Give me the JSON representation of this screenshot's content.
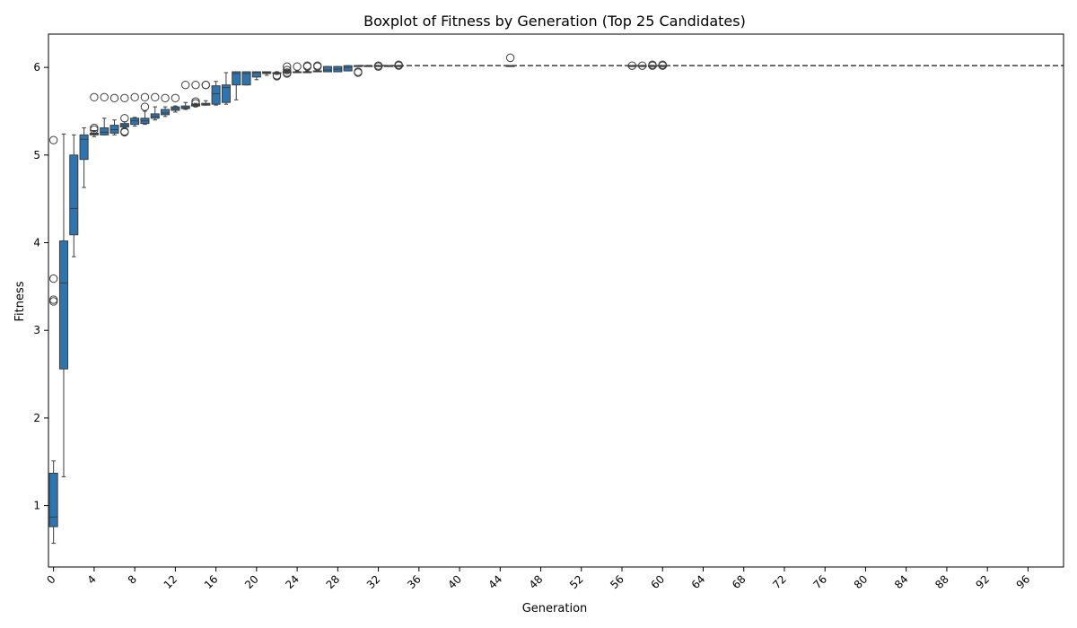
{
  "chart_data": {
    "type": "boxplot",
    "title": "Boxplot of Fitness by Generation (Top 25 Candidates)",
    "xlabel": "Generation",
    "ylabel": "Fitness",
    "xlim": [
      -0.5,
      99.5
    ],
    "ylim": [
      0.3,
      6.38
    ],
    "yticks": [
      1,
      2,
      3,
      4,
      5,
      6
    ],
    "xticks": [
      0,
      4,
      8,
      12,
      16,
      20,
      24,
      28,
      32,
      36,
      40,
      44,
      48,
      52,
      56,
      60,
      64,
      68,
      72,
      76,
      80,
      84,
      88,
      92,
      96
    ],
    "grid": false,
    "box_color": "#2e75b0",
    "edge_color": "#3d3d3d",
    "boxes": [
      {
        "gen": 0,
        "whislo": 0.57,
        "q1": 0.76,
        "med": 0.87,
        "q3": 1.37,
        "whishi": 1.51,
        "fliers": [
          5.17,
          3.59,
          3.35,
          3.33
        ]
      },
      {
        "gen": 1,
        "whislo": 1.33,
        "q1": 2.56,
        "med": 3.54,
        "q3": 4.02,
        "whishi": 5.24,
        "fliers": []
      },
      {
        "gen": 2,
        "whislo": 3.84,
        "q1": 4.09,
        "med": 4.39,
        "q3": 5.0,
        "whishi": 5.23,
        "fliers": []
      },
      {
        "gen": 3,
        "whislo": 4.63,
        "q1": 4.95,
        "med": 5.18,
        "q3": 5.23,
        "whishi": 5.31,
        "fliers": []
      },
      {
        "gen": 4,
        "whislo": 5.21,
        "q1": 5.23,
        "med": 5.24,
        "q3": 5.25,
        "whishi": 5.28,
        "fliers": [
          5.66,
          5.31,
          5.29
        ]
      },
      {
        "gen": 5,
        "whislo": 5.23,
        "q1": 5.23,
        "med": 5.26,
        "q3": 5.31,
        "whishi": 5.42,
        "fliers": [
          5.66
        ]
      },
      {
        "gen": 6,
        "whislo": 5.23,
        "q1": 5.25,
        "med": 5.29,
        "q3": 5.34,
        "whishi": 5.4,
        "fliers": [
          5.65
        ]
      },
      {
        "gen": 7,
        "whislo": 5.3,
        "q1": 5.32,
        "med": 5.34,
        "q3": 5.36,
        "whishi": 5.38,
        "fliers": [
          5.65,
          5.42,
          5.27,
          5.26
        ]
      },
      {
        "gen": 8,
        "whislo": 5.33,
        "q1": 5.35,
        "med": 5.39,
        "q3": 5.42,
        "whishi": 5.43,
        "fliers": [
          5.66
        ]
      },
      {
        "gen": 9,
        "whislo": 5.35,
        "q1": 5.36,
        "med": 5.39,
        "q3": 5.42,
        "whishi": 5.5,
        "fliers": [
          5.66,
          5.55
        ]
      },
      {
        "gen": 10,
        "whislo": 5.4,
        "q1": 5.42,
        "med": 5.44,
        "q3": 5.47,
        "whishi": 5.55,
        "fliers": [
          5.66
        ]
      },
      {
        "gen": 11,
        "whislo": 5.44,
        "q1": 5.46,
        "med": 5.48,
        "q3": 5.52,
        "whishi": 5.55,
        "fliers": [
          5.65
        ]
      },
      {
        "gen": 12,
        "whislo": 5.49,
        "q1": 5.51,
        "med": 5.53,
        "q3": 5.55,
        "whishi": 5.56,
        "fliers": [
          5.65
        ]
      },
      {
        "gen": 13,
        "whislo": 5.52,
        "q1": 5.53,
        "med": 5.54,
        "q3": 5.56,
        "whishi": 5.6,
        "fliers": [
          5.8
        ]
      },
      {
        "gen": 14,
        "whislo": 5.55,
        "q1": 5.56,
        "med": 5.57,
        "q3": 5.58,
        "whishi": 5.59,
        "fliers": [
          5.8,
          5.61,
          5.59
        ]
      },
      {
        "gen": 15,
        "whislo": 5.57,
        "q1": 5.57,
        "med": 5.58,
        "q3": 5.59,
        "whishi": 5.62,
        "fliers": [
          5.8,
          5.8
        ]
      },
      {
        "gen": 16,
        "whislo": 5.57,
        "q1": 5.58,
        "med": 5.7,
        "q3": 5.79,
        "whishi": 5.84,
        "fliers": []
      },
      {
        "gen": 17,
        "whislo": 5.58,
        "q1": 5.6,
        "med": 5.77,
        "q3": 5.8,
        "whishi": 5.94,
        "fliers": []
      },
      {
        "gen": 18,
        "whislo": 5.63,
        "q1": 5.8,
        "med": 5.93,
        "q3": 5.95,
        "whishi": 5.95,
        "fliers": []
      },
      {
        "gen": 19,
        "whislo": 5.8,
        "q1": 5.8,
        "med": 5.93,
        "q3": 5.95,
        "whishi": 5.95,
        "fliers": []
      },
      {
        "gen": 20,
        "whislo": 5.86,
        "q1": 5.89,
        "med": 5.94,
        "q3": 5.95,
        "whishi": 5.95,
        "fliers": []
      },
      {
        "gen": 21,
        "whislo": 5.91,
        "q1": 5.93,
        "med": 5.94,
        "q3": 5.95,
        "whishi": 5.95,
        "fliers": []
      },
      {
        "gen": 22,
        "whislo": 5.92,
        "q1": 5.93,
        "med": 5.94,
        "q3": 5.94,
        "whishi": 5.95,
        "fliers": [
          5.91,
          5.9
        ]
      },
      {
        "gen": 23,
        "whislo": 5.95,
        "q1": 5.95,
        "med": 5.95,
        "q3": 5.95,
        "whishi": 5.96,
        "fliers": [
          6.01,
          5.97,
          5.94,
          5.93
        ]
      },
      {
        "gen": 24,
        "whislo": 5.95,
        "q1": 5.95,
        "med": 5.95,
        "q3": 5.95,
        "whishi": 5.96,
        "fliers": [
          6.01
        ]
      },
      {
        "gen": 25,
        "whislo": 5.95,
        "q1": 5.95,
        "med": 5.95,
        "q3": 5.95,
        "whishi": 5.96,
        "fliers": [
          6.02,
          6.01
        ]
      },
      {
        "gen": 26,
        "whislo": 5.95,
        "q1": 5.95,
        "med": 5.95,
        "q3": 5.96,
        "whishi": 5.96,
        "fliers": [
          6.02,
          6.01
        ]
      },
      {
        "gen": 27,
        "whislo": 5.95,
        "q1": 5.95,
        "med": 5.97,
        "q3": 6.01,
        "whishi": 6.01,
        "fliers": []
      },
      {
        "gen": 28,
        "whislo": 5.95,
        "q1": 5.95,
        "med": 5.98,
        "q3": 6.01,
        "whishi": 6.01,
        "fliers": []
      },
      {
        "gen": 29,
        "whislo": 5.96,
        "q1": 5.96,
        "med": 6.0,
        "q3": 6.02,
        "whishi": 6.02,
        "fliers": []
      },
      {
        "gen": 30,
        "whislo": 6.02,
        "q1": 6.02,
        "med": 6.02,
        "q3": 6.02,
        "whishi": 6.02,
        "fliers": [
          5.95,
          5.94
        ]
      },
      {
        "gen": 31,
        "whislo": 6.02,
        "q1": 6.02,
        "med": 6.02,
        "q3": 6.02,
        "whishi": 6.02,
        "fliers": []
      },
      {
        "gen": 32,
        "whislo": 6.02,
        "q1": 6.02,
        "med": 6.02,
        "q3": 6.02,
        "whishi": 6.02,
        "fliers": [
          6.02,
          6.01
        ]
      },
      {
        "gen": 33,
        "whislo": 6.02,
        "q1": 6.02,
        "med": 6.02,
        "q3": 6.02,
        "whishi": 6.02,
        "fliers": []
      },
      {
        "gen": 34,
        "whislo": 6.02,
        "q1": 6.02,
        "med": 6.02,
        "q3": 6.02,
        "whishi": 6.02,
        "fliers": [
          6.03,
          6.02
        ]
      },
      {
        "gen": 45,
        "whislo": 6.02,
        "q1": 6.02,
        "med": 6.02,
        "q3": 6.02,
        "whishi": 6.02,
        "fliers": [
          6.11
        ]
      },
      {
        "gen": 57,
        "whislo": 6.02,
        "q1": 6.02,
        "med": 6.02,
        "q3": 6.02,
        "whishi": 6.02,
        "fliers": [
          6.02
        ]
      },
      {
        "gen": 58,
        "whislo": 6.02,
        "q1": 6.02,
        "med": 6.02,
        "q3": 6.02,
        "whishi": 6.02,
        "fliers": [
          6.02
        ]
      },
      {
        "gen": 59,
        "whislo": 6.02,
        "q1": 6.02,
        "med": 6.02,
        "q3": 6.02,
        "whishi": 6.02,
        "fliers": [
          6.02,
          6.03
        ]
      },
      {
        "gen": 60,
        "whislo": 6.02,
        "q1": 6.02,
        "med": 6.02,
        "q3": 6.02,
        "whishi": 6.02,
        "fliers": [
          6.02,
          6.03
        ]
      }
    ],
    "plateau": {
      "value": 6.02,
      "from_gen": 30,
      "to_gen": 99
    }
  }
}
